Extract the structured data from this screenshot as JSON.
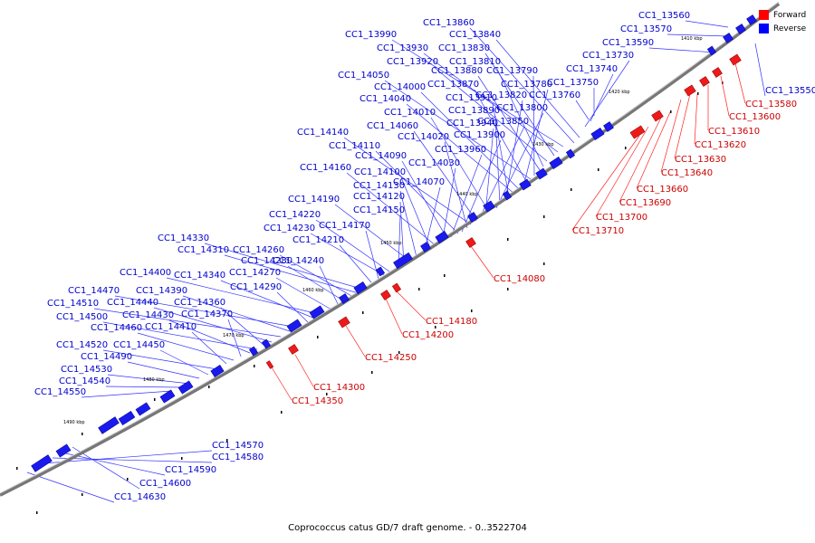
{
  "caption": "Coprococcus catus GD/7 draft genome. - 0..3522704",
  "legend": [
    {
      "label": "Forward",
      "color": "#ff0000"
    },
    {
      "label": "Reverse",
      "color": "#0000ff"
    }
  ],
  "scale_ticks": [
    "1410 kbp",
    "1420 kbp",
    "1430 kbp",
    "1440 kbp",
    "1450 kbp",
    "1460 kbp",
    "1470 kbp",
    "1480 kbp",
    "1490 kbp"
  ],
  "reverse_labels": [
    "CC1_13560",
    "CC1_13570",
    "CC1_13590",
    "CC1_13550",
    "CC1_13860",
    "CC1_13840",
    "CC1_13990",
    "CC1_13930",
    "CC1_13830",
    "CC1_13920",
    "CC1_13810",
    "CC1_13730",
    "CC1_13880",
    "CC1_13790",
    "CC1_13740",
    "CC1_14050",
    "CC1_13870",
    "CC1_13780",
    "CC1_13750",
    "CC1_14000",
    "CC1_14040",
    "CC1_13910",
    "CC1_13820",
    "CC1_13760",
    "CC1_13890",
    "CC1_13800",
    "CC1_14010",
    "CC1_13940",
    "CC1_13850",
    "CC1_14060",
    "CC1_14140",
    "CC1_14020",
    "CC1_13900",
    "CC1_14110",
    "CC1_13960",
    "CC1_14090",
    "CC1_14030",
    "CC1_14160",
    "CC1_14100",
    "CC1_14070",
    "CC1_14130",
    "CC1_14190",
    "CC1_14120",
    "CC1_14150",
    "CC1_14220",
    "CC1_14230",
    "CC1_14170",
    "CC1_14210",
    "CC1_14330",
    "CC1_14310",
    "CC1_14260",
    "CC1_14280",
    "CC1_14240",
    "CC1_14270",
    "CC1_14400",
    "CC1_14340",
    "CC1_14290",
    "CC1_14470",
    "CC1_14390",
    "CC1_14510",
    "CC1_14440",
    "CC1_14360",
    "CC1_14500",
    "CC1_14430",
    "CC1_14370",
    "CC1_14460",
    "CC1_14410",
    "CC1_14520",
    "CC1_14450",
    "CC1_14490",
    "CC1_14530",
    "CC1_14540",
    "CC1_14550",
    "CC1_14570",
    "CC1_14580",
    "CC1_14590",
    "CC1_14600",
    "CC1_14630"
  ],
  "forward_labels": [
    "CC1_13580",
    "CC1_13600",
    "CC1_13610",
    "CC1_13620",
    "CC1_13630",
    "CC1_13640",
    "CC1_13660",
    "CC1_13690",
    "CC1_13700",
    "CC1_13710",
    "CC1_14080",
    "CC1_14180",
    "CC1_14200",
    "CC1_14250",
    "CC1_14300",
    "CC1_14350"
  ]
}
